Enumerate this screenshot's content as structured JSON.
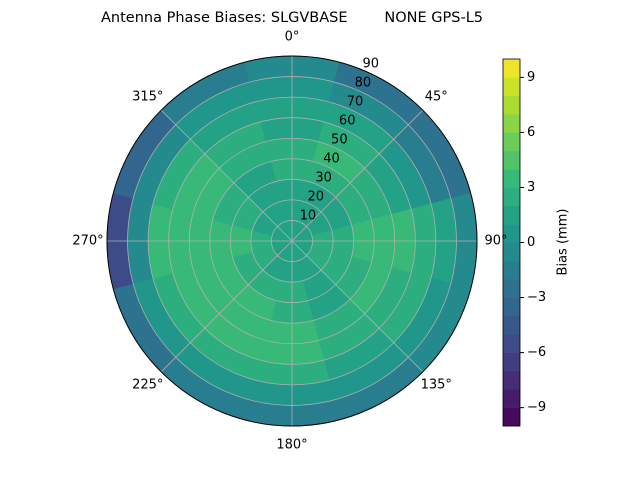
{
  "chart_data": {
    "type": "polar-contour",
    "title": "Antenna Phase Biases: SLGVBASE        NONE GPS-L5",
    "colorbar_label": "Bias (mm)",
    "colormap": "viridis",
    "clim": [
      -10,
      10
    ],
    "levels": [
      -10,
      -9,
      -8,
      -7,
      -6,
      -5,
      -4,
      -3,
      -2,
      -1,
      0,
      1,
      2,
      3,
      4,
      5,
      6,
      7,
      8,
      9,
      10
    ],
    "cticks": [
      {
        "value": -9,
        "label": "−9"
      },
      {
        "value": -6,
        "label": "−6"
      },
      {
        "value": -3,
        "label": "−3"
      },
      0,
      3,
      6,
      9
    ],
    "rlim": [
      0,
      90
    ],
    "rticks": [
      10,
      20,
      30,
      40,
      50,
      60,
      70,
      80,
      90
    ],
    "thetaticks": [
      {
        "value": 0,
        "label": "0°"
      },
      {
        "value": 45,
        "label": "45°"
      },
      {
        "value": 90,
        "label": "90°"
      },
      {
        "value": 135,
        "label": "135°"
      },
      {
        "value": 180,
        "label": "180°"
      },
      {
        "value": 225,
        "label": "225°"
      },
      {
        "value": 270,
        "label": "270°"
      },
      {
        "value": 315,
        "label": "315°"
      }
    ],
    "azimuths": [
      0,
      30,
      60,
      90,
      120,
      150,
      180,
      210,
      240,
      270,
      300,
      330
    ],
    "zenith_bins": [
      0,
      10,
      20,
      30,
      40,
      50,
      60,
      70,
      80,
      90
    ],
    "values": [
      [
        1,
        1,
        1,
        1,
        1,
        1,
        1,
        1,
        1,
        1,
        1,
        1
      ],
      [
        1,
        1,
        1,
        2,
        2,
        1,
        1,
        1,
        2,
        2,
        1,
        1
      ],
      [
        1,
        1,
        1,
        2,
        2,
        1,
        2,
        2,
        2,
        3,
        2,
        1
      ],
      [
        2,
        2,
        2,
        3,
        2,
        1,
        2,
        3,
        3,
        3,
        2,
        1
      ],
      [
        2,
        3,
        2,
        3,
        3,
        2,
        3,
        3,
        3,
        3,
        3,
        2
      ],
      [
        1,
        2,
        1,
        3,
        2,
        2,
        3,
        3,
        3,
        3,
        3,
        2
      ],
      [
        1,
        1,
        0,
        2,
        2,
        1,
        2,
        2,
        2,
        3,
        2,
        1
      ],
      [
        0,
        -1,
        -2,
        1,
        0,
        0,
        0,
        0,
        0,
        -1,
        -1,
        0
      ],
      [
        -1,
        -3,
        -3,
        -1,
        -1,
        -2,
        -2,
        -2,
        -3,
        -6,
        -4,
        -2
      ]
    ],
    "grid": true
  }
}
